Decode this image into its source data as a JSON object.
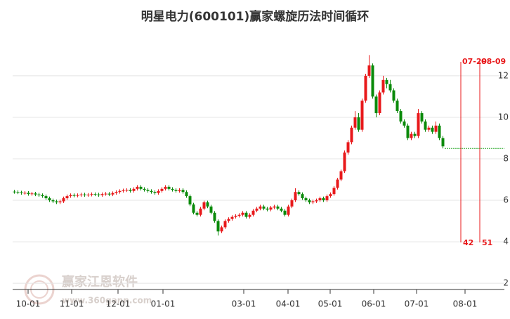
{
  "chart_data": {
    "type": "candlestick",
    "title": "明星电力(600101)赢家螺旋历法时间循环",
    "up_color": "#e8191b",
    "down_color": "#0a8a0a",
    "xlim": [
      0,
      140
    ],
    "xticks": [
      {
        "value": 4.4,
        "label": "10-01"
      },
      {
        "value": 16.8,
        "label": "11-01"
      },
      {
        "value": 30,
        "label": "12-01"
      },
      {
        "value": 42.8,
        "label": "01-01"
      },
      {
        "value": 65.8,
        "label": "03-01"
      },
      {
        "value": 78.4,
        "label": "04-01"
      },
      {
        "value": 90.4,
        "label": "05-01"
      },
      {
        "value": 102.8,
        "label": "06-01"
      },
      {
        "value": 115,
        "label": "07-01"
      },
      {
        "value": 128.8,
        "label": "08-01"
      }
    ],
    "ylim": [
      1.7,
      14.3
    ],
    "yticks": [
      2,
      4,
      6,
      8,
      10,
      12
    ],
    "grid": true,
    "ohlc": [
      [
        6.42,
        6.5,
        6.32,
        6.4
      ],
      [
        6.4,
        6.48,
        6.3,
        6.38
      ],
      [
        6.38,
        6.46,
        6.27,
        6.35
      ],
      [
        6.35,
        6.44,
        6.27,
        6.36
      ],
      [
        6.36,
        6.44,
        6.22,
        6.3
      ],
      [
        6.3,
        6.41,
        6.22,
        6.33
      ],
      [
        6.33,
        6.41,
        6.2,
        6.28
      ],
      [
        6.28,
        6.36,
        6.17,
        6.25
      ],
      [
        6.25,
        6.33,
        6.12,
        6.2
      ],
      [
        6.2,
        6.28,
        6.02,
        6.1
      ],
      [
        6.1,
        6.18,
        5.92,
        6
      ],
      [
        6,
        6.08,
        5.87,
        5.95
      ],
      [
        5.95,
        6.03,
        5.82,
        5.9
      ],
      [
        5.9,
        6.03,
        5.82,
        5.95
      ],
      [
        5.95,
        6.18,
        5.87,
        6.1
      ],
      [
        6.1,
        6.28,
        6.02,
        6.2
      ],
      [
        6.2,
        6.33,
        6.12,
        6.25
      ],
      [
        6.25,
        6.33,
        6.14,
        6.22
      ],
      [
        6.22,
        6.33,
        6.14,
        6.25
      ],
      [
        6.25,
        6.36,
        6.17,
        6.28
      ],
      [
        6.28,
        6.36,
        6.17,
        6.25
      ],
      [
        6.25,
        6.35,
        6.17,
        6.27
      ],
      [
        6.27,
        6.38,
        6.19,
        6.3
      ],
      [
        6.3,
        6.38,
        6.2,
        6.28
      ],
      [
        6.28,
        6.36,
        6.17,
        6.25
      ],
      [
        6.25,
        6.38,
        6.17,
        6.3
      ],
      [
        6.3,
        6.4,
        6.22,
        6.32
      ],
      [
        6.32,
        6.4,
        6.2,
        6.28
      ],
      [
        6.28,
        6.43,
        6.2,
        6.35
      ],
      [
        6.35,
        6.48,
        6.27,
        6.4
      ],
      [
        6.4,
        6.53,
        6.32,
        6.45
      ],
      [
        6.45,
        6.56,
        6.37,
        6.48
      ],
      [
        6.48,
        6.58,
        6.4,
        6.5
      ],
      [
        6.5,
        6.58,
        6.37,
        6.45
      ],
      [
        6.45,
        6.63,
        6.37,
        6.55
      ],
      [
        6.55,
        6.73,
        6.47,
        6.65
      ],
      [
        6.65,
        6.73,
        6.47,
        6.55
      ],
      [
        6.55,
        6.63,
        6.42,
        6.5
      ],
      [
        6.5,
        6.58,
        6.37,
        6.45
      ],
      [
        6.45,
        6.53,
        6.32,
        6.4
      ],
      [
        6.4,
        6.48,
        6.27,
        6.35
      ],
      [
        6.35,
        6.53,
        6.27,
        6.45
      ],
      [
        6.45,
        6.63,
        6.37,
        6.55
      ],
      [
        6.55,
        6.73,
        6.47,
        6.65
      ],
      [
        6.65,
        6.73,
        6.47,
        6.55
      ],
      [
        6.55,
        6.63,
        6.42,
        6.5
      ],
      [
        6.5,
        6.58,
        6.37,
        6.45
      ],
      [
        6.45,
        6.58,
        6.37,
        6.5
      ],
      [
        6.5,
        6.58,
        6.32,
        6.4
      ],
      [
        6.4,
        6.48,
        6.12,
        6.2
      ],
      [
        6.2,
        6.28,
        5.72,
        5.8
      ],
      [
        5.8,
        5.88,
        5.32,
        5.4
      ],
      [
        5.4,
        5.48,
        5.22,
        5.3
      ],
      [
        5.3,
        5.68,
        5.22,
        5.6
      ],
      [
        5.6,
        5.98,
        5.52,
        5.9
      ],
      [
        5.9,
        5.98,
        5.62,
        5.7
      ],
      [
        5.7,
        5.78,
        5.32,
        5.4
      ],
      [
        5.4,
        5.48,
        4.92,
        5
      ],
      [
        5,
        5.08,
        4.3,
        4.5
      ],
      [
        4.5,
        4.78,
        4.42,
        4.7
      ],
      [
        4.7,
        5.08,
        4.62,
        5
      ],
      [
        5,
        5.18,
        4.92,
        5.1
      ],
      [
        5.1,
        5.28,
        5.02,
        5.2
      ],
      [
        5.2,
        5.33,
        5.12,
        5.25
      ],
      [
        5.25,
        5.38,
        5.17,
        5.3
      ],
      [
        5.3,
        5.48,
        5.22,
        5.4
      ],
      [
        5.4,
        5.48,
        5.12,
        5.2
      ],
      [
        5.2,
        5.38,
        5.12,
        5.3
      ],
      [
        5.3,
        5.58,
        5.22,
        5.5
      ],
      [
        5.5,
        5.68,
        5.42,
        5.6
      ],
      [
        5.6,
        5.78,
        5.52,
        5.7
      ],
      [
        5.7,
        5.78,
        5.52,
        5.6
      ],
      [
        5.6,
        5.68,
        5.47,
        5.55
      ],
      [
        5.55,
        5.73,
        5.47,
        5.65
      ],
      [
        5.65,
        5.78,
        5.57,
        5.7
      ],
      [
        5.7,
        5.78,
        5.52,
        5.6
      ],
      [
        5.6,
        5.68,
        5.42,
        5.5
      ],
      [
        5.5,
        5.58,
        5.22,
        5.3
      ],
      [
        5.3,
        5.78,
        5.22,
        5.7
      ],
      [
        5.7,
        6.08,
        5.62,
        6
      ],
      [
        6,
        6.58,
        5.92,
        6.4
      ],
      [
        6.4,
        6.48,
        6.22,
        6.3
      ],
      [
        6.3,
        6.38,
        6.02,
        6.1
      ],
      [
        6.1,
        6.18,
        5.92,
        6
      ],
      [
        6,
        6.08,
        5.82,
        5.9
      ],
      [
        5.9,
        6.03,
        5.82,
        5.95
      ],
      [
        5.95,
        6.08,
        5.87,
        6
      ],
      [
        6,
        6.18,
        5.92,
        6.1
      ],
      [
        6.1,
        6.18,
        5.92,
        6
      ],
      [
        6,
        6.28,
        5.92,
        6.2
      ],
      [
        6.2,
        6.38,
        6.12,
        6.3
      ],
      [
        6.3,
        6.68,
        6.22,
        6.6
      ],
      [
        6.6,
        7.08,
        6.52,
        7
      ],
      [
        7,
        7.48,
        6.92,
        7.4
      ],
      [
        7.4,
        8.4,
        7.32,
        8.3
      ],
      [
        8.3,
        8.9,
        8.2,
        8.8
      ],
      [
        8.8,
        9.6,
        8.7,
        9.5
      ],
      [
        9.5,
        10.3,
        9.4,
        10
      ],
      [
        10,
        10.2,
        9.3,
        9.4
      ],
      [
        9.4,
        10.9,
        9.3,
        10.8
      ],
      [
        10.8,
        12.1,
        10.7,
        12
      ],
      [
        12,
        13,
        11.9,
        12.5
      ],
      [
        12.5,
        12.6,
        10.9,
        11
      ],
      [
        11,
        11.1,
        10,
        10.2
      ],
      [
        10.2,
        11.3,
        10.1,
        11.2
      ],
      [
        11.2,
        12,
        11.1,
        11.8
      ],
      [
        11.8,
        11.9,
        11.4,
        11.6
      ],
      [
        11.6,
        11.8,
        11.2,
        11.3
      ],
      [
        11.3,
        11.4,
        10.7,
        10.8
      ],
      [
        10.8,
        10.9,
        10.2,
        10.3
      ],
      [
        10.3,
        10.4,
        9.7,
        9.8
      ],
      [
        9.8,
        9.9,
        9.5,
        9.6
      ],
      [
        9.6,
        9.7,
        8.9,
        9
      ],
      [
        9,
        9.3,
        8.9,
        9.2
      ],
      [
        9.2,
        9.3,
        9,
        9.1
      ],
      [
        9.1,
        10.4,
        9,
        10.2
      ],
      [
        10.2,
        10.3,
        9.7,
        9.8
      ],
      [
        9.8,
        9.9,
        9.3,
        9.4
      ],
      [
        9.4,
        9.6,
        9.3,
        9.5
      ],
      [
        9.5,
        9.6,
        9.2,
        9.3
      ],
      [
        9.3,
        9.8,
        9.2,
        9.6
      ],
      [
        9.6,
        9.7,
        8.9,
        9
      ],
      [
        9,
        9.1,
        8.5,
        8.6
      ]
    ],
    "projection": {
      "value": 8.5,
      "color": "#2eaa2e"
    },
    "cycles": [
      {
        "label": "07-29",
        "x": 127.6,
        "count": 42
      },
      {
        "label": "08-09",
        "x": 133,
        "count": 51
      }
    ],
    "cycle_color": "#e8191b",
    "watermark": {
      "name": "赢家江恩软件",
      "url": "www.360gann.com"
    }
  }
}
